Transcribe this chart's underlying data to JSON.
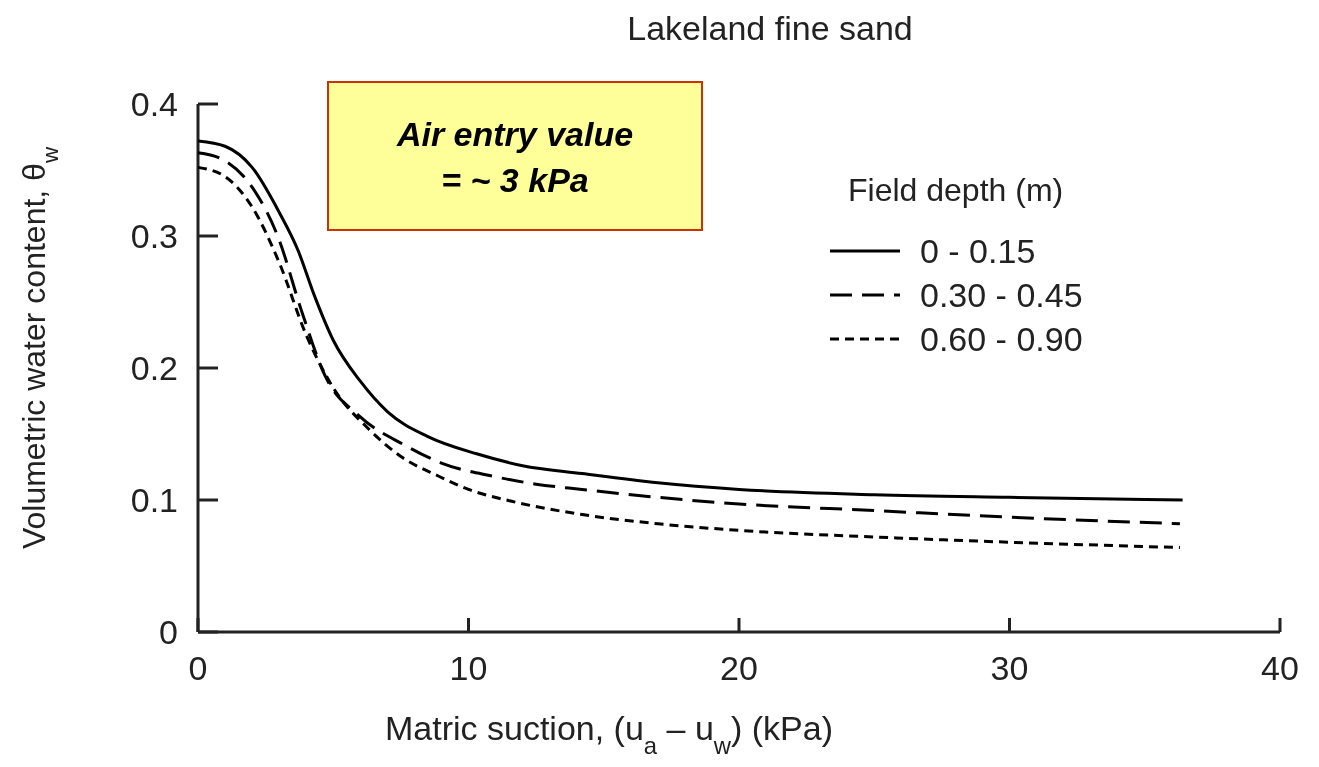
{
  "chart_data": {
    "type": "line",
    "title": "Lakeland fine sand",
    "xlabel": "Matric suction, (u$_{a}$ – u$_{w}$) (kPa)",
    "ylabel": "Volumetric water content, θ$_{w}$",
    "legend_title": "Field depth (m)",
    "legend": "top right",
    "grid": false,
    "marker": "none",
    "xlim": [
      0,
      40
    ],
    "xticks": [
      0,
      10,
      20,
      30,
      40
    ],
    "ylim": [
      0,
      0.4
    ],
    "yticks": [
      0,
      0.1,
      0.2,
      0.3,
      0.4
    ],
    "annotations": [
      "Air entry value\n= ~ 3 kPa"
    ],
    "series": [
      {
        "name": "0 - 0.15",
        "color": "#000000",
        "line_style": "solid",
        "x": [
          0,
          1,
          2,
          3,
          3.7,
          4.3,
          5,
          6,
          7,
          8.5,
          10.3,
          12,
          14.2,
          17,
          20,
          25,
          30,
          36.4
        ],
        "values": [
          0.372,
          0.368,
          0.352,
          0.318,
          0.289,
          0.255,
          0.221,
          0.19,
          0.167,
          0.148,
          0.135,
          0.126,
          0.12,
          0.113,
          0.108,
          0.104,
          0.102,
          0.1
        ]
      },
      {
        "name": "0.30 - 0.45",
        "color": "#000000",
        "line_style": "dashed",
        "x": [
          0,
          1,
          2,
          3,
          3.8,
          4.7,
          6,
          7.6,
          9,
          10.9,
          12.5,
          14.2,
          17,
          20,
          25,
          30,
          36.3
        ],
        "values": [
          0.363,
          0.357,
          0.337,
          0.297,
          0.245,
          0.194,
          0.163,
          0.142,
          0.128,
          0.118,
          0.112,
          0.108,
          0.102,
          0.097,
          0.092,
          0.087,
          0.082
        ]
      },
      {
        "name": "0.60 - 0.90",
        "color": "#000000",
        "line_style": "dotted",
        "x": [
          0,
          1,
          2,
          3,
          4,
          5,
          6.3,
          7.5,
          8.9,
          10,
          11.6,
          14.2,
          17,
          20,
          25,
          30,
          36.3
        ],
        "values": [
          0.352,
          0.345,
          0.322,
          0.28,
          0.225,
          0.185,
          0.154,
          0.133,
          0.118,
          0.108,
          0.099,
          0.089,
          0.082,
          0.077,
          0.072,
          0.068,
          0.064
        ]
      }
    ]
  }
}
